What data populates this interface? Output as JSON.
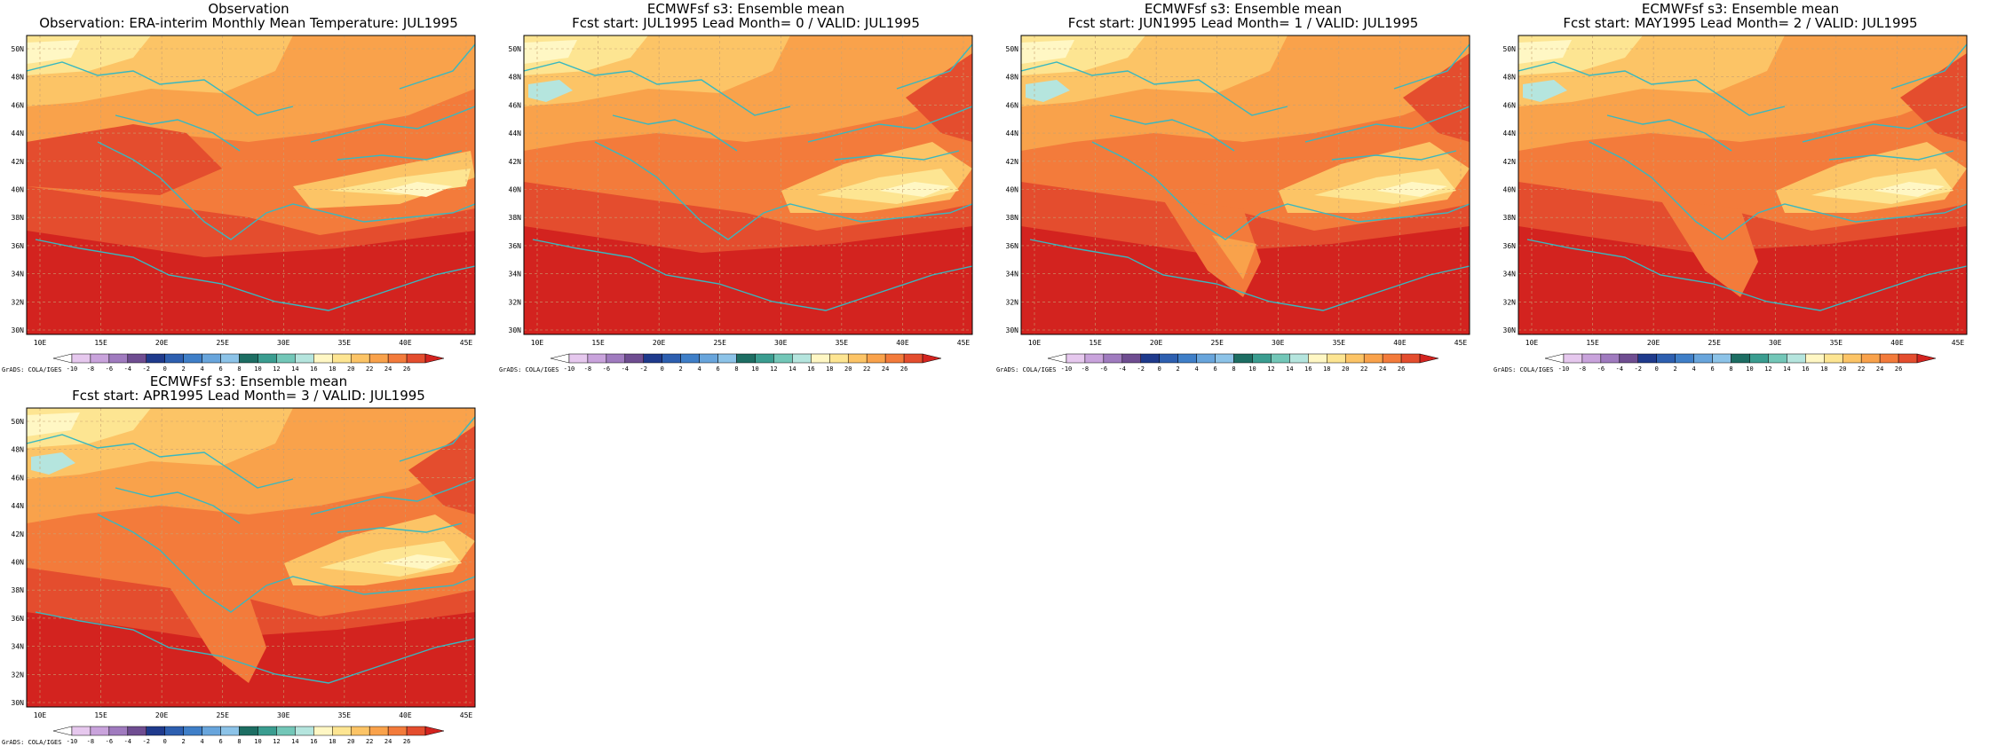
{
  "panels": [
    {
      "title1": "Observation",
      "title2": "Observation: ERA-interim Monthly Mean Temperature: JUL1995",
      "variant": 0
    },
    {
      "title1": "ECMWFsf s3: Ensemble mean",
      "title2": "Fcst start: JUL1995  Lead Month= 0 / VALID: JUL1995",
      "variant": 1
    },
    {
      "title1": "ECMWFsf s3: Ensemble mean",
      "title2": "Fcst start: JUN1995  Lead Month= 1 / VALID: JUL1995",
      "variant": 2
    },
    {
      "title1": "ECMWFsf s3: Ensemble mean",
      "title2": "Fcst start: MAY1995  Lead Month= 2 / VALID: JUL1995",
      "variant": 3
    },
    {
      "title1": "ECMWFsf s3: Ensemble mean",
      "title2": "Fcst start: APR1995  Lead Month= 3 / VALID: JUL1995",
      "variant": 4
    }
  ],
  "lat_labels": [
    "50N",
    "48N",
    "46N",
    "44N",
    "42N",
    "40N",
    "38N",
    "36N",
    "34N",
    "32N",
    "30N"
  ],
  "lon_labels": [
    "10E",
    "15E",
    "20E",
    "25E",
    "30E",
    "35E",
    "40E",
    "45E"
  ],
  "colorbar": {
    "labels": [
      "-10",
      "-8",
      "-6",
      "-4",
      "-2",
      "0",
      "2",
      "4",
      "6",
      "8",
      "10",
      "12",
      "14",
      "16",
      "18",
      "20",
      "22",
      "24",
      "26"
    ],
    "colors": [
      "#ffffff",
      "#e6c8ee",
      "#c9a3dc",
      "#a07bbf",
      "#6f4d91",
      "#1f3a8c",
      "#2d5fb0",
      "#3f7fc8",
      "#68a5dc",
      "#8cc3e8",
      "#1d6e63",
      "#3a9d90",
      "#73c7b8",
      "#b5e5de",
      "#fff7c4",
      "#fde592",
      "#fcc466",
      "#f9a24b",
      "#f37b3b",
      "#e44d2e",
      "#d3231f"
    ]
  },
  "grads_tag": "GrADS: COLA/IGES",
  "map_colors": {
    "coast": "#38b8c0",
    "grid": "#c8a070"
  }
}
